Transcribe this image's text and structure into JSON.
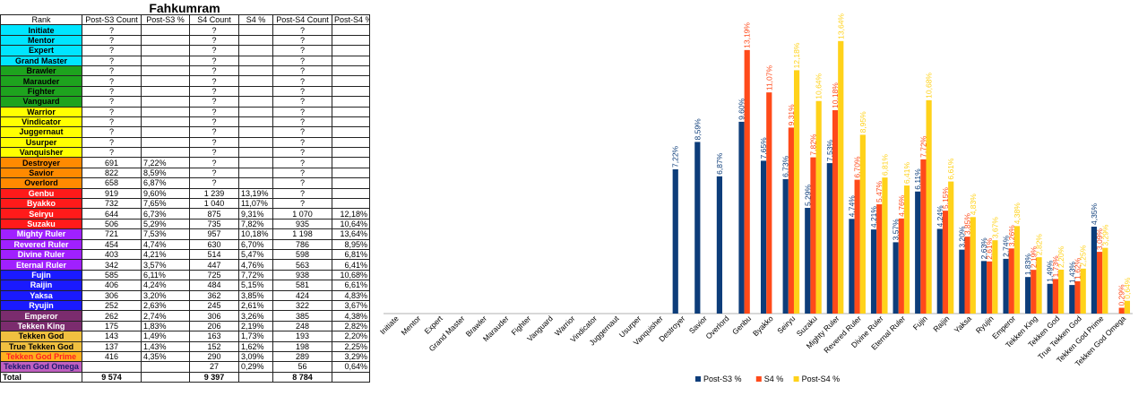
{
  "table": {
    "title": "Fahkumram",
    "headers": [
      "Rank",
      "Post-S3 Count",
      "Post-S3 %",
      "S4 Count",
      "S4 %",
      "Post-S4 Count",
      "Post-S4 %"
    ],
    "rows": [
      {
        "rank": "Initiate",
        "bg": "#00e5ff",
        "fg": "#000000",
        "c3": "?",
        "p3": "",
        "c4": "?",
        "p4": "",
        "c5": "?",
        "p5": ""
      },
      {
        "rank": "Mentor",
        "bg": "#00e5ff",
        "fg": "#000000",
        "c3": "?",
        "p3": "",
        "c4": "?",
        "p4": "",
        "c5": "?",
        "p5": ""
      },
      {
        "rank": "Expert",
        "bg": "#00e5ff",
        "fg": "#000000",
        "c3": "?",
        "p3": "",
        "c4": "?",
        "p4": "",
        "c5": "?",
        "p5": ""
      },
      {
        "rank": "Grand Master",
        "bg": "#00e5ff",
        "fg": "#000000",
        "c3": "?",
        "p3": "",
        "c4": "?",
        "p4": "",
        "c5": "?",
        "p5": ""
      },
      {
        "rank": "Brawler",
        "bg": "#1ea31e",
        "fg": "#000000",
        "c3": "?",
        "p3": "",
        "c4": "?",
        "p4": "",
        "c5": "?",
        "p5": ""
      },
      {
        "rank": "Marauder",
        "bg": "#1ea31e",
        "fg": "#000000",
        "c3": "?",
        "p3": "",
        "c4": "?",
        "p4": "",
        "c5": "?",
        "p5": ""
      },
      {
        "rank": "Fighter",
        "bg": "#1ea31e",
        "fg": "#000000",
        "c3": "?",
        "p3": "",
        "c4": "?",
        "p4": "",
        "c5": "?",
        "p5": ""
      },
      {
        "rank": "Vanguard",
        "bg": "#1ea31e",
        "fg": "#000000",
        "c3": "?",
        "p3": "",
        "c4": "?",
        "p4": "",
        "c5": "?",
        "p5": ""
      },
      {
        "rank": "Warrior",
        "bg": "#ffff00",
        "fg": "#000000",
        "c3": "?",
        "p3": "",
        "c4": "?",
        "p4": "",
        "c5": "?",
        "p5": ""
      },
      {
        "rank": "Vindicator",
        "bg": "#ffff00",
        "fg": "#000000",
        "c3": "?",
        "p3": "",
        "c4": "?",
        "p4": "",
        "c5": "?",
        "p5": ""
      },
      {
        "rank": "Juggernaut",
        "bg": "#ffff00",
        "fg": "#000000",
        "c3": "?",
        "p3": "",
        "c4": "?",
        "p4": "",
        "c5": "?",
        "p5": ""
      },
      {
        "rank": "Usurper",
        "bg": "#ffff00",
        "fg": "#000000",
        "c3": "?",
        "p3": "",
        "c4": "?",
        "p4": "",
        "c5": "?",
        "p5": ""
      },
      {
        "rank": "Vanquisher",
        "bg": "#ffff00",
        "fg": "#000000",
        "c3": "?",
        "p3": "",
        "c4": "?",
        "p4": "",
        "c5": "?",
        "p5": ""
      },
      {
        "rank": "Destroyer",
        "bg": "#ff8a00",
        "fg": "#000000",
        "c3": "691",
        "p3": "7,22%",
        "c4": "?",
        "p4": "",
        "c5": "?",
        "p5": ""
      },
      {
        "rank": "Savior",
        "bg": "#ff8a00",
        "fg": "#000000",
        "c3": "822",
        "p3": "8,59%",
        "c4": "?",
        "p4": "",
        "c5": "?",
        "p5": ""
      },
      {
        "rank": "Overlord",
        "bg": "#ff8a00",
        "fg": "#000000",
        "c3": "658",
        "p3": "6,87%",
        "c4": "?",
        "p4": "",
        "c5": "?",
        "p5": ""
      },
      {
        "rank": "Genbu",
        "bg": "#ff1a1a",
        "fg": "#ffffff",
        "c3": "919",
        "p3": "9,60%",
        "c4": "1 239",
        "p4": "13,19%",
        "c5": "?",
        "p5": ""
      },
      {
        "rank": "Byakko",
        "bg": "#ff1a1a",
        "fg": "#ffffff",
        "c3": "732",
        "p3": "7,65%",
        "c4": "1 040",
        "p4": "11,07%",
        "c5": "?",
        "p5": ""
      },
      {
        "rank": "Seiryu",
        "bg": "#ff1a1a",
        "fg": "#ffffff",
        "c3": "644",
        "p3": "6,73%",
        "c4": "875",
        "p4": "9,31%",
        "c5": "1 070",
        "p5": "12,18%"
      },
      {
        "rank": "Suzaku",
        "bg": "#ff1a1a",
        "fg": "#ffffff",
        "c3": "506",
        "p3": "5,29%",
        "c4": "735",
        "p4": "7,82%",
        "c5": "935",
        "p5": "10,64%"
      },
      {
        "rank": "Mighty Ruler",
        "bg": "#a020ff",
        "fg": "#ffffff",
        "c3": "721",
        "p3": "7,53%",
        "c4": "957",
        "p4": "10,18%",
        "c5": "1 198",
        "p5": "13,64%"
      },
      {
        "rank": "Revered Ruler",
        "bg": "#a020ff",
        "fg": "#ffffff",
        "c3": "454",
        "p3": "4,74%",
        "c4": "630",
        "p4": "6,70%",
        "c5": "786",
        "p5": "8,95%"
      },
      {
        "rank": "Divine Ruler",
        "bg": "#a020ff",
        "fg": "#ffffff",
        "c3": "403",
        "p3": "4,21%",
        "c4": "514",
        "p4": "5,47%",
        "c5": "598",
        "p5": "6,81%"
      },
      {
        "rank": "Eternal Ruler",
        "bg": "#a020ff",
        "fg": "#ffffff",
        "c3": "342",
        "p3": "3,57%",
        "c4": "447",
        "p4": "4,76%",
        "c5": "563",
        "p5": "6,41%"
      },
      {
        "rank": "Fujin",
        "bg": "#1a1aff",
        "fg": "#ffffff",
        "c3": "585",
        "p3": "6,11%",
        "c4": "725",
        "p4": "7,72%",
        "c5": "938",
        "p5": "10,68%"
      },
      {
        "rank": "Raijin",
        "bg": "#1a1aff",
        "fg": "#ffffff",
        "c3": "406",
        "p3": "4,24%",
        "c4": "484",
        "p4": "5,15%",
        "c5": "581",
        "p5": "6,61%"
      },
      {
        "rank": "Yaksa",
        "bg": "#1a1aff",
        "fg": "#ffffff",
        "c3": "306",
        "p3": "3,20%",
        "c4": "362",
        "p4": "3,85%",
        "c5": "424",
        "p5": "4,83%"
      },
      {
        "rank": "Ryujin",
        "bg": "#1a1aff",
        "fg": "#ffffff",
        "c3": "252",
        "p3": "2,63%",
        "c4": "245",
        "p4": "2,61%",
        "c5": "322",
        "p5": "3,67%"
      },
      {
        "rank": "Emperor",
        "bg": "#7b2c6e",
        "fg": "#ffffff",
        "c3": "262",
        "p3": "2,74%",
        "c4": "306",
        "p4": "3,26%",
        "c5": "385",
        "p5": "4,38%"
      },
      {
        "rank": "Tekken King",
        "bg": "#7b2c6e",
        "fg": "#ffffff",
        "c3": "175",
        "p3": "1,83%",
        "c4": "206",
        "p4": "2,19%",
        "c5": "248",
        "p5": "2,82%"
      },
      {
        "rank": "Tekken God",
        "bg": "#f0c040",
        "fg": "#000000",
        "c3": "143",
        "p3": "1,49%",
        "c4": "163",
        "p4": "1,73%",
        "c5": "193",
        "p5": "2,20%"
      },
      {
        "rank": "True Tekken God",
        "bg": "#f0c040",
        "fg": "#000000",
        "c3": "137",
        "p3": "1,43%",
        "c4": "152",
        "p4": "1,62%",
        "c5": "198",
        "p5": "2,25%"
      },
      {
        "rank": "Tekken God Prime",
        "bg": "#ffb020",
        "fg": "#ff2020",
        "c3": "416",
        "p3": "4,35%",
        "c4": "290",
        "p4": "3,09%",
        "c5": "289",
        "p5": "3,29%"
      },
      {
        "rank": "Tekken God Omega",
        "bg": "#c060c0",
        "fg": "#1a1a6e",
        "c3": "",
        "p3": "",
        "c4": "27",
        "p4": "0,29%",
        "c5": "56",
        "p5": "0,64%"
      }
    ],
    "total": {
      "rank": "Total",
      "c3": "9 574",
      "p3": "",
      "c4": "9 397",
      "p4": "",
      "c5": "8 784",
      "p5": ""
    }
  },
  "chart_data": {
    "type": "bar",
    "title": "",
    "xlabel": "",
    "ylabel": "",
    "ylim": [
      0,
      14.5
    ],
    "grid": false,
    "legend_position": "bottom",
    "categories": [
      "Initiate",
      "Mentor",
      "Expert",
      "Grand Master",
      "Brawler",
      "Marauder",
      "Fighter",
      "Vanguard",
      "Warrior",
      "Vindicator",
      "Juggernaut",
      "Usurper",
      "Vanquisher",
      "Destroyer",
      "Savior",
      "Overlord",
      "Genbu",
      "Byakko",
      "Seiryu",
      "Suzaku",
      "Mighty Ruler",
      "Revered Ruler",
      "Divine Ruler",
      "Eternal Ruler",
      "Fujin",
      "Raijin",
      "Yaksa",
      "Ryujin",
      "Emperor",
      "Tekken King",
      "Tekken God",
      "True Tekken God",
      "Tekken God Prime",
      "Tekken God Omega"
    ],
    "series": [
      {
        "name": "Post-S3 %",
        "color": "#0d3d7a",
        "values": [
          null,
          null,
          null,
          null,
          null,
          null,
          null,
          null,
          null,
          null,
          null,
          null,
          null,
          7.22,
          8.59,
          6.87,
          9.6,
          7.65,
          6.73,
          5.29,
          7.53,
          4.74,
          4.21,
          3.57,
          6.11,
          4.24,
          3.2,
          2.63,
          2.74,
          1.83,
          1.49,
          1.43,
          4.35,
          null
        ],
        "labels": [
          "",
          "",
          "",
          "",
          "",
          "",
          "",
          "",
          "",
          "",
          "",
          "",
          "",
          "7,22%",
          "8,59%",
          "6,87%",
          "9,60%",
          "7,65%",
          "6,73%",
          "5,29%",
          "7,53%",
          "4,74%",
          "4,21%",
          "3,57%",
          "6,11%",
          "4,24%",
          "3,20%",
          "2,63%",
          "2,74%",
          "1,83%",
          "1,49%",
          "1,43%",
          "4,35%",
          ""
        ]
      },
      {
        "name": "S4 %",
        "color": "#ff4a1a",
        "values": [
          null,
          null,
          null,
          null,
          null,
          null,
          null,
          null,
          null,
          null,
          null,
          null,
          null,
          null,
          null,
          null,
          13.19,
          11.07,
          9.31,
          7.82,
          10.18,
          6.7,
          5.47,
          4.76,
          7.72,
          5.15,
          3.85,
          2.61,
          3.26,
          2.19,
          1.73,
          1.62,
          3.09,
          0.29
        ],
        "labels": [
          "",
          "",
          "",
          "",
          "",
          "",
          "",
          "",
          "",
          "",
          "",
          "",
          "",
          "",
          "",
          "",
          "13,19%",
          "11,07%",
          "9,31%",
          "7,82%",
          "10,18%",
          "6,70%",
          "5,47%",
          "4,76%",
          "7,72%",
          "5,15%",
          "3,85%",
          "2,61%",
          "3,26%",
          "2,19%",
          "1,73%",
          "1,62%",
          "3,09%",
          "0,29%"
        ]
      },
      {
        "name": "Post-S4 %",
        "color": "#ffd21a",
        "values": [
          null,
          null,
          null,
          null,
          null,
          null,
          null,
          null,
          null,
          null,
          null,
          null,
          null,
          null,
          null,
          null,
          null,
          null,
          12.18,
          10.64,
          13.64,
          8.95,
          6.81,
          6.41,
          10.68,
          6.61,
          4.83,
          3.67,
          4.38,
          2.82,
          2.2,
          2.25,
          3.29,
          0.64
        ],
        "labels": [
          "",
          "",
          "",
          "",
          "",
          "",
          "",
          "",
          "",
          "",
          "",
          "",
          "",
          "",
          "",
          "",
          "",
          "",
          "12,18%",
          "10,64%",
          "13,64%",
          "8,95%",
          "6,81%",
          "6,41%",
          "10,68%",
          "6,61%",
          "4,83%",
          "3,67%",
          "4,38%",
          "2,82%",
          "2,20%",
          "2,25%",
          "3,29%",
          "0,64%"
        ]
      }
    ]
  }
}
